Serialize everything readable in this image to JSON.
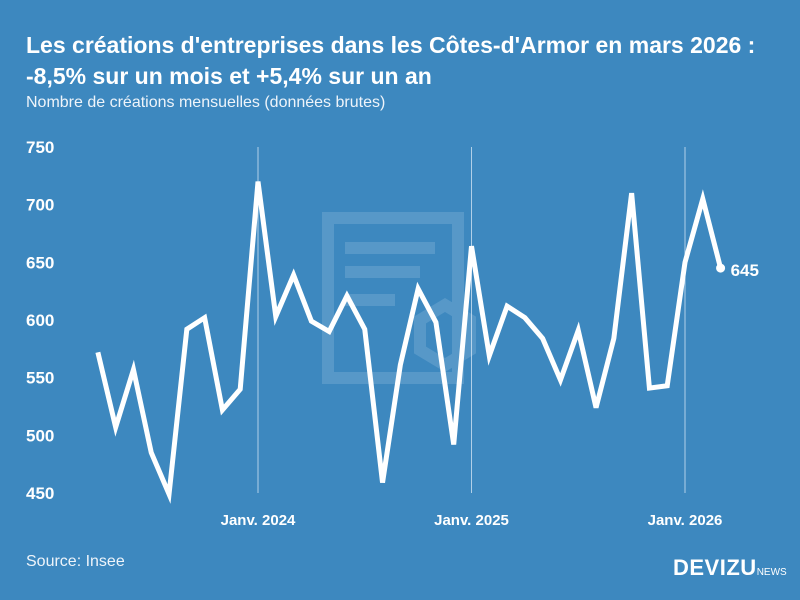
{
  "title": "Les créations d'entreprises dans les Côtes-d'Armor en mars 2026 : -8,5% sur un mois et +5,4% sur un an",
  "subtitle": "Nombre de créations mensuelles (données brutes)",
  "source": "Source: Insee",
  "logo": {
    "main": "DEVIZU",
    "suffix": "NEWS"
  },
  "colors": {
    "background": "#3d88bf",
    "line": "#ffffff"
  },
  "chart_data": {
    "type": "line",
    "title": "Les créations d'entreprises dans les Côtes-d'Armor en mars 2026 : -8,5% sur un mois et +5,4% sur un an",
    "ylabel": "Nombre de créations mensuelles (données brutes)",
    "ylim": [
      450,
      750
    ],
    "yticks": [
      "750",
      "700",
      "650",
      "600",
      "550",
      "500",
      "450"
    ],
    "xticks": [
      {
        "label": "Janv. 2024",
        "x": "2024-01"
      },
      {
        "label": "Janv. 2025",
        "x": "2025-01"
      },
      {
        "label": "Janv. 2026",
        "x": "2026-01"
      }
    ],
    "grid": "vertical lines at January",
    "last_label": "645",
    "x": [
      "2023-04",
      "2023-05",
      "2023-06",
      "2023-07",
      "2023-08",
      "2023-09",
      "2023-10",
      "2023-11",
      "2023-12",
      "2024-01",
      "2024-02",
      "2024-03",
      "2024-04",
      "2024-05",
      "2024-06",
      "2024-07",
      "2024-08",
      "2024-09",
      "2024-10",
      "2024-11",
      "2024-12",
      "2025-01",
      "2025-02",
      "2025-03",
      "2025-04",
      "2025-05",
      "2025-06",
      "2025-07",
      "2025-08",
      "2025-09",
      "2025-10",
      "2025-11",
      "2025-12",
      "2026-01",
      "2026-02",
      "2026-03"
    ],
    "values": [
      572,
      507,
      557,
      485,
      449,
      592,
      602,
      522,
      540,
      720,
      603,
      639,
      599,
      590,
      621,
      592,
      459,
      561,
      627,
      598,
      492,
      664,
      569,
      612,
      602,
      584,
      548,
      591,
      524,
      584,
      710,
      541,
      543,
      650,
      705,
      645
    ]
  }
}
